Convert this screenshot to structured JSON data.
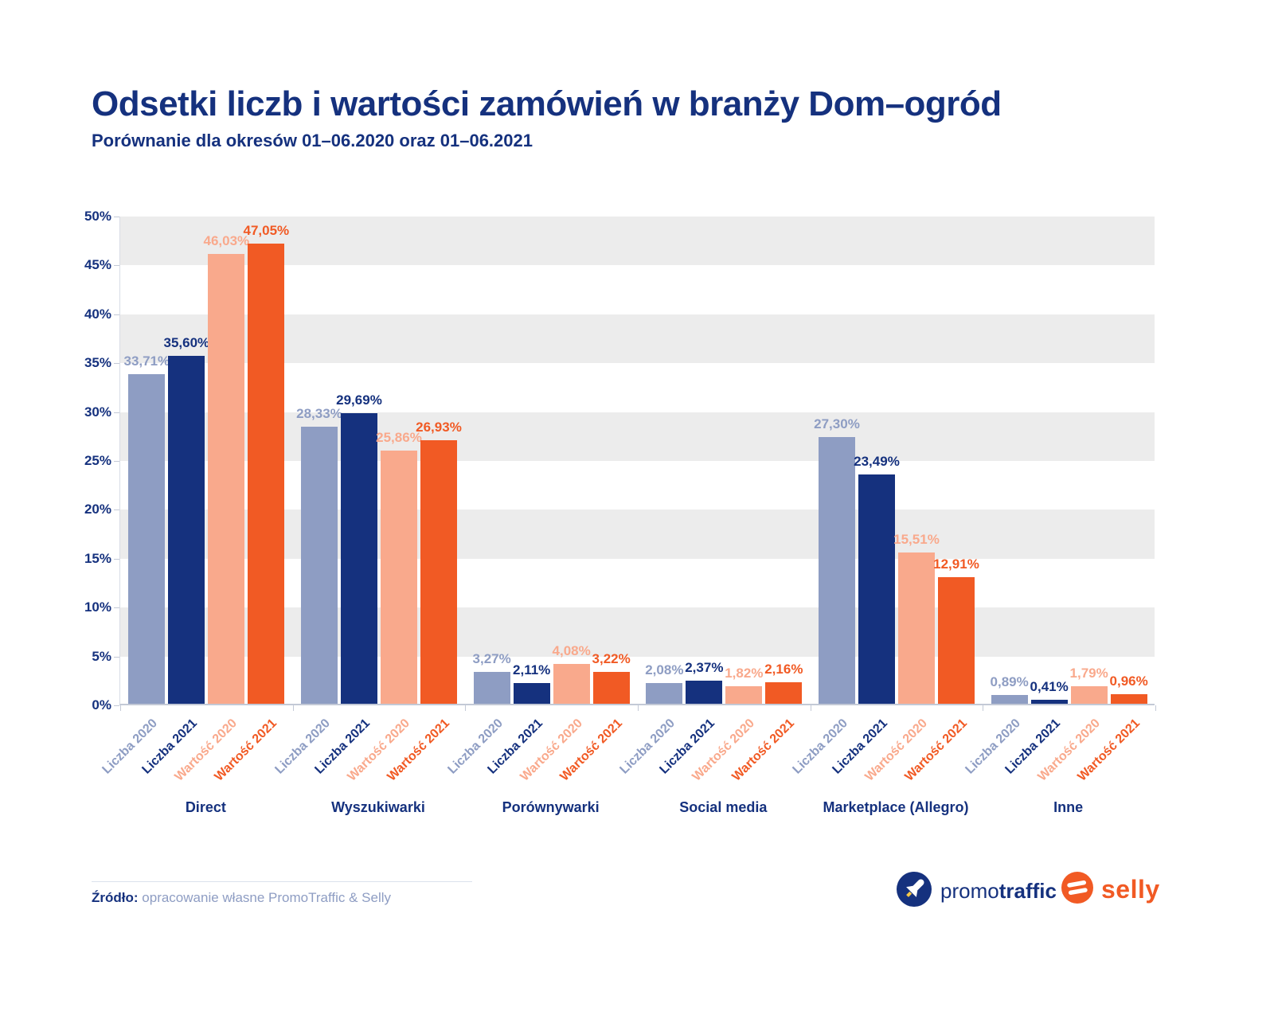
{
  "chart_data": {
    "type": "bar",
    "title": "Odsetki liczb i wartości zamówień w branży Dom–ogród",
    "subtitle": "Porównanie dla okresów 01–06.2020 oraz 01–06.2021",
    "categories": [
      "Direct",
      "Wyszukiwarki",
      "Porównywarki",
      "Social media",
      "Marketplace (Allegro)",
      "Inne"
    ],
    "series": [
      {
        "name": "Liczba 2020",
        "color": "#8e9dc3",
        "values": [
          33.71,
          28.33,
          3.27,
          2.08,
          27.3,
          0.89
        ]
      },
      {
        "name": "Liczba 2021",
        "color": "#15317e",
        "values": [
          35.6,
          29.69,
          2.11,
          2.37,
          23.49,
          0.41
        ]
      },
      {
        "name": "Wartość 2020",
        "color": "#f9a98c",
        "values": [
          46.03,
          25.86,
          4.08,
          1.82,
          15.51,
          1.79
        ]
      },
      {
        "name": "Wartość 2021",
        "color": "#f15a24",
        "values": [
          47.05,
          26.93,
          3.22,
          2.16,
          12.91,
          0.96
        ]
      }
    ],
    "ylim": [
      0,
      50
    ],
    "ytick_step": 5,
    "ytick_labels": [
      "50%",
      "45%",
      "40%",
      "35%",
      "30%",
      "25%",
      "20%",
      "15%",
      "10%",
      "5%",
      "0%"
    ],
    "grid": "horizontal-stripes",
    "legend": "none",
    "value_label_format": "comma-decimal-percent"
  },
  "palette": {
    "navy": "#15317e",
    "blue_gray": "#8e9dc3",
    "salmon": "#f9a98c",
    "orange": "#f15a24",
    "stripe_gray": "#ececec",
    "axis_gray": "#c3c9d6"
  },
  "footer": {
    "source_label": "Źródło:",
    "source_text": "opracowanie własne PromoTraffic & Selly",
    "promotraffic_light": "promo",
    "promotraffic_bold": "traffic",
    "selly_text": "selly"
  }
}
